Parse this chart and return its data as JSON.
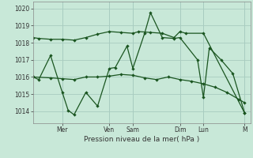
{
  "background_color": "#c8e8d8",
  "grid_color": "#a8ccc0",
  "line_color": "#1a5520",
  "xlabel": "Pression niveau de la mer( hPa )",
  "ylim": [
    1013.3,
    1020.4
  ],
  "yticks": [
    1014,
    1015,
    1016,
    1017,
    1018,
    1019,
    1020
  ],
  "xlim": [
    0,
    18.5
  ],
  "xtick_positions": [
    2.5,
    6.5,
    8.5,
    12.5,
    14.5,
    18.0
  ],
  "xtick_day_labels": [
    "Mer",
    "Ven",
    "Sam",
    "Dim",
    "Lun",
    "M"
  ],
  "line1_x": [
    0.0,
    0.5,
    1.5,
    2.5,
    3.5,
    4.5,
    5.5,
    6.5,
    7.5,
    8.5,
    9.0,
    10.0,
    11.0,
    12.0,
    12.5,
    13.0,
    14.5,
    18.0
  ],
  "line1_y": [
    1018.3,
    1018.25,
    1018.2,
    1018.2,
    1018.15,
    1018.3,
    1018.5,
    1018.65,
    1018.6,
    1018.55,
    1018.65,
    1018.6,
    1018.55,
    1018.3,
    1018.65,
    1018.55,
    1018.55,
    1013.9
  ],
  "line2_x": [
    0.0,
    1.5,
    2.5,
    3.5,
    4.5,
    5.5,
    6.5,
    7.5,
    8.5,
    9.5,
    10.5,
    11.5,
    12.5,
    13.5,
    14.5,
    15.5,
    16.5,
    17.5,
    18.0
  ],
  "line2_y": [
    1016.0,
    1015.95,
    1015.9,
    1015.85,
    1016.0,
    1016.0,
    1016.05,
    1016.15,
    1016.1,
    1015.95,
    1015.85,
    1016.0,
    1015.85,
    1015.75,
    1015.6,
    1015.4,
    1015.1,
    1014.7,
    1014.5
  ],
  "line3_x": [
    0.0,
    0.5,
    1.5,
    2.5,
    3.0,
    3.5,
    4.5,
    5.5,
    6.5,
    7.0,
    8.0,
    8.5,
    9.5,
    10.0,
    11.0,
    12.0,
    12.5,
    14.0,
    14.5,
    15.0,
    16.0,
    17.0,
    18.0
  ],
  "line3_y": [
    1016.0,
    1015.85,
    1017.25,
    1015.1,
    1014.05,
    1013.8,
    1015.1,
    1014.3,
    1016.5,
    1016.55,
    1017.8,
    1016.5,
    1018.55,
    1019.75,
    1018.3,
    1018.25,
    1018.3,
    1017.0,
    1014.8,
    1017.7,
    1017.0,
    1016.2,
    1013.9
  ]
}
